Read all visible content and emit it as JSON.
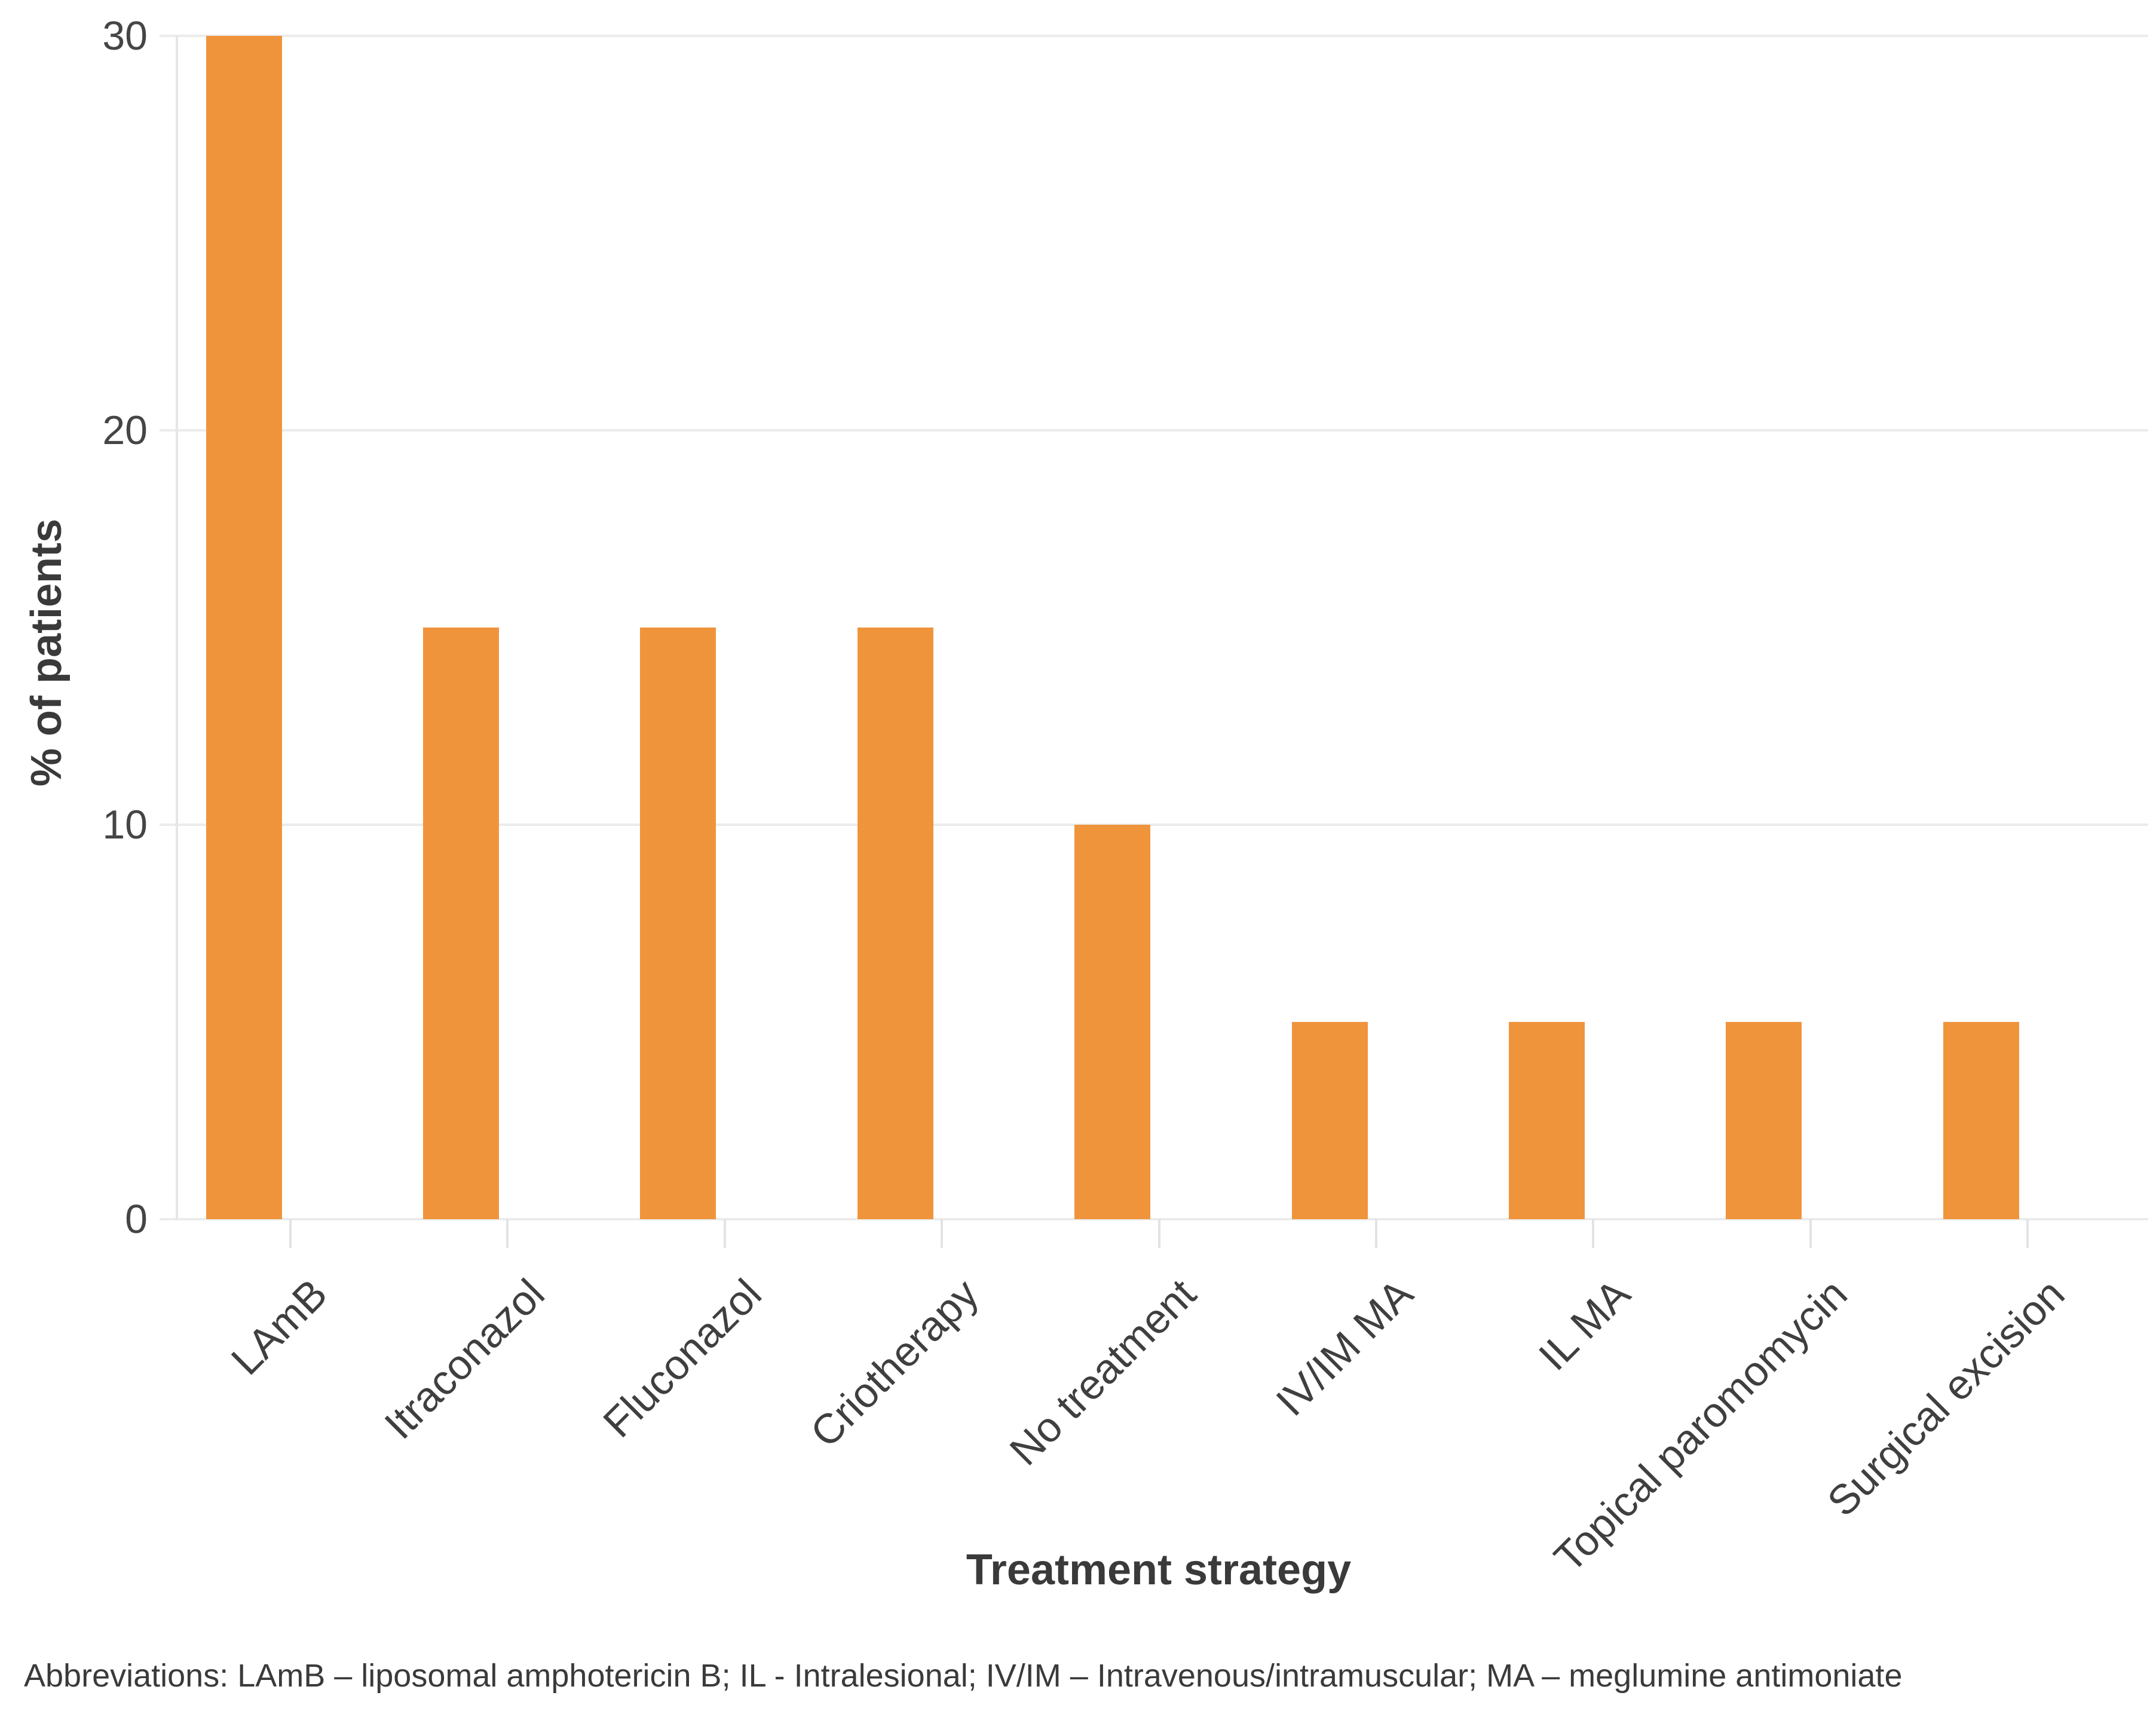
{
  "chart_data": {
    "type": "bar",
    "title": "",
    "categories": [
      "LAmB",
      "Itraconazol",
      "Fluconazol",
      "Criotherapy",
      "No treatment",
      "IV/IM MA",
      "IL MA",
      "Topical paromomycin",
      "Surgical excision"
    ],
    "values": [
      30,
      15,
      15,
      15,
      10,
      5,
      5,
      5,
      5
    ],
    "xlabel": "Treatment strategy",
    "ylabel": "% of patients",
    "yticks": [
      0,
      10,
      20,
      30
    ],
    "ylim": [
      0,
      30
    ],
    "grid": "horizontal-only",
    "legend_position": "none",
    "x_label_rotation_deg": 45
  },
  "notes": {
    "abbreviations": "Abbreviations: LAmB – liposomal amphotericin B; IL - Intralesional; IV/IM – Intravenous/intramuscular; MA – meglumine antimoniate"
  },
  "colors": {
    "bar": "#F0943C",
    "gridline": "#EBEBEB",
    "axis_line": "#E6E6E6",
    "tick_text": "#454545",
    "title_text": "#3A3A3A",
    "background": "#FFFFFF"
  }
}
